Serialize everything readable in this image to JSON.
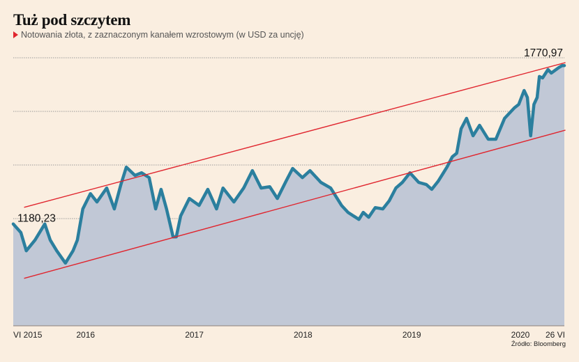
{
  "header": {
    "title": "Tuż pod szczytem",
    "subtitle": "Notowania złota, z zaznaczonym kanałem wzrostowym (w USD za uncję)"
  },
  "source": "Źródło: Bloomberg",
  "colors": {
    "background": "#faeee0",
    "area_fill": "#c1c8d6",
    "line": "#2b7f9e",
    "channel": "#e0252e",
    "grid": "#9a9a9a",
    "accent_marker": "#e0252e"
  },
  "chart_data": {
    "type": "area",
    "title": "Tuż pod szczytem",
    "subtitle": "Notowania złota, z zaznaczonym kanałem wzrostowym (w USD za uncję)",
    "xlabel": "",
    "ylabel": "USD za uncję",
    "xlim": [
      2015.42,
      2020.49
    ],
    "ylim": [
      800,
      1800
    ],
    "yticks": [
      1000,
      1200,
      1400,
      1600,
      1800
    ],
    "ytick_labels_visible": false,
    "grid": true,
    "x_ticks": [
      {
        "x": 2015.42,
        "label": "VI 2015"
      },
      {
        "x": 2016.0,
        "label": "2016"
      },
      {
        "x": 2017.0,
        "label": "2017"
      },
      {
        "x": 2018.0,
        "label": "2018"
      },
      {
        "x": 2019.0,
        "label": "2019"
      },
      {
        "x": 2020.0,
        "label": "2020"
      },
      {
        "x": 2020.49,
        "label": "26 VI"
      }
    ],
    "series": [
      {
        "name": "Złoto (USD/oz)",
        "x": [
          2015.42,
          2015.49,
          2015.54,
          2015.62,
          2015.71,
          2015.76,
          2015.82,
          2015.9,
          2015.97,
          2016.01,
          2016.06,
          2016.13,
          2016.19,
          2016.28,
          2016.35,
          2016.41,
          2016.46,
          2016.54,
          2016.6,
          2016.67,
          2016.73,
          2016.78,
          2016.83,
          2016.89,
          2016.92,
          2016.96,
          2017.04,
          2017.13,
          2017.21,
          2017.29,
          2017.35,
          2017.45,
          2017.54,
          2017.62,
          2017.7,
          2017.78,
          2017.85,
          2017.93,
          2017.99,
          2018.08,
          2018.15,
          2018.25,
          2018.34,
          2018.44,
          2018.5,
          2018.6,
          2018.64,
          2018.69,
          2018.75,
          2018.82,
          2018.88,
          2018.94,
          2019.0,
          2019.07,
          2019.15,
          2019.22,
          2019.27,
          2019.33,
          2019.41,
          2019.46,
          2019.5,
          2019.54,
          2019.59,
          2019.65,
          2019.71,
          2019.79,
          2019.86,
          2019.94,
          2020.03,
          2020.07,
          2020.12,
          2020.15,
          2020.18,
          2020.21,
          2020.24,
          2020.26,
          2020.29,
          2020.34,
          2020.37,
          2020.44,
          2020.47,
          2020.49
        ],
        "values": [
          1180,
          1148,
          1080,
          1120,
          1180,
          1120,
          1080,
          1034,
          1080,
          1120,
          1236,
          1293,
          1262,
          1314,
          1236,
          1327,
          1392,
          1361,
          1371,
          1353,
          1236,
          1309,
          1236,
          1132,
          1132,
          1210,
          1275,
          1249,
          1309,
          1236,
          1314,
          1262,
          1314,
          1379,
          1314,
          1319,
          1275,
          1340,
          1387,
          1353,
          1379,
          1335,
          1314,
          1249,
          1223,
          1197,
          1223,
          1205,
          1241,
          1236,
          1267,
          1314,
          1335,
          1371,
          1335,
          1327,
          1309,
          1340,
          1392,
          1431,
          1444,
          1535,
          1574,
          1509,
          1548,
          1496,
          1496,
          1574,
          1613,
          1626,
          1678,
          1652,
          1509,
          1626,
          1652,
          1730,
          1725,
          1756,
          1743,
          1764,
          1771,
          1770.97
        ]
      }
    ],
    "channel_lines": [
      {
        "name": "upper",
        "x": [
          2015.52,
          2020.5
        ],
        "values": [
          1242,
          1782
        ]
      },
      {
        "name": "lower",
        "x": [
          2015.52,
          2020.5
        ],
        "values": [
          977,
          1530
        ]
      }
    ],
    "annotations": [
      {
        "label": "1180,23",
        "x": 2015.42,
        "value": 1180.23,
        "position": "start"
      },
      {
        "label": "1770,97",
        "x": 2020.49,
        "value": 1770.97,
        "position": "end"
      }
    ]
  }
}
